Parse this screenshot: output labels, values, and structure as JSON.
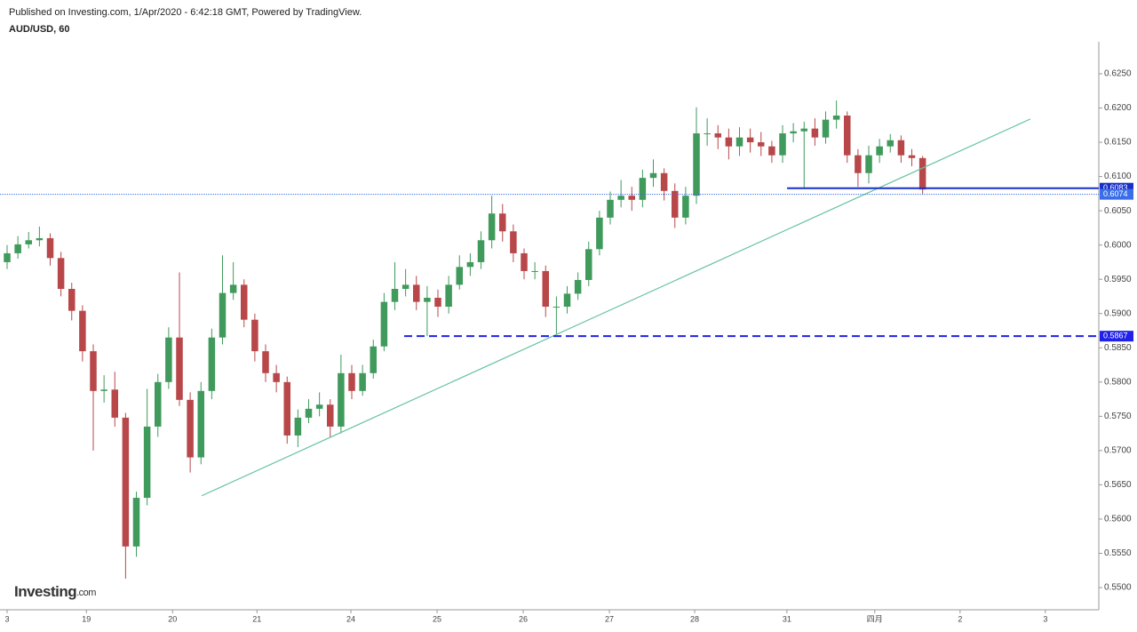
{
  "chart_data": {
    "type": "candlestick",
    "subtitle": "Published on Investing.com, 1/Apr/2020 - 6:42:18 GMT, Powered by TradingView.",
    "title": "AUD/USD, 60",
    "logo": {
      "main": "Investing",
      "suffix": ".com"
    },
    "up_color": "#3f9a5c",
    "down_color": "#b8474a",
    "xlim": [
      -0.0825,
      12.67
    ],
    "ylim": [
      0.54676,
      0.62967
    ],
    "xticks": [
      {
        "value": 0,
        "label": "3"
      },
      {
        "value": 0.92,
        "label": "19"
      },
      {
        "value": 1.92,
        "label": "20"
      },
      {
        "value": 2.9,
        "label": "21"
      },
      {
        "value": 3.99,
        "label": "24"
      },
      {
        "value": 4.99,
        "label": "25"
      },
      {
        "value": 5.99,
        "label": "26"
      },
      {
        "value": 6.99,
        "label": "27"
      },
      {
        "value": 7.98,
        "label": "28"
      },
      {
        "value": 9.05,
        "label": "31"
      },
      {
        "value": 10.07,
        "label": "四月"
      },
      {
        "value": 11.06,
        "label": "2"
      },
      {
        "value": 12.05,
        "label": "3"
      }
    ],
    "yticks": [
      {
        "value": 0.55,
        "label": "0.5500"
      },
      {
        "value": 0.555,
        "label": "0.5550"
      },
      {
        "value": 0.56,
        "label": "0.5600"
      },
      {
        "value": 0.565,
        "label": "0.5650"
      },
      {
        "value": 0.57,
        "label": "0.5700"
      },
      {
        "value": 0.575,
        "label": "0.5750"
      },
      {
        "value": 0.58,
        "label": "0.5800"
      },
      {
        "value": 0.585,
        "label": "0.5850"
      },
      {
        "value": 0.59,
        "label": "0.5900"
      },
      {
        "value": 0.595,
        "label": "0.5950"
      },
      {
        "value": 0.6,
        "label": "0.6000"
      },
      {
        "value": 0.605,
        "label": "0.6050"
      },
      {
        "value": 0.61,
        "label": "0.6100"
      },
      {
        "value": 0.615,
        "label": "0.6150"
      },
      {
        "value": 0.62,
        "label": "0.6200"
      },
      {
        "value": 0.625,
        "label": "0.6250"
      }
    ],
    "x": [
      0,
      0.125,
      0.25,
      0.375,
      0.5,
      0.625,
      0.75,
      0.875,
      1,
      1.125,
      1.25,
      1.375,
      1.5,
      1.625,
      1.75,
      1.875,
      2,
      2.125,
      2.25,
      2.375,
      2.5,
      2.625,
      2.75,
      2.875,
      3,
      3.125,
      3.25,
      3.375,
      3.5,
      3.625,
      3.75,
      3.875,
      4,
      4.125,
      4.25,
      4.375,
      4.5,
      4.625,
      4.75,
      4.875,
      5,
      5.125,
      5.25,
      5.375,
      5.5,
      5.625,
      5.75,
      5.875,
      6,
      6.125,
      6.25,
      6.375,
      6.5,
      6.625,
      6.75,
      6.875,
      7,
      7.125,
      7.25,
      7.375,
      7.5,
      7.625,
      7.75,
      7.875,
      8,
      8.125,
      8.25,
      8.375,
      8.5,
      8.625,
      8.75,
      8.875,
      9,
      9.125,
      9.25,
      9.375,
      9.5,
      9.625,
      9.75,
      9.875,
      10,
      10.125,
      10.25,
      10.375,
      10.5,
      10.625
    ],
    "open": [
      0.5975,
      0.5988,
      0.6001,
      0.6007,
      0.601,
      0.5981,
      0.5936,
      0.5904,
      0.5845,
      0.5787,
      0.5789,
      0.5748,
      0.556,
      0.5631,
      0.5735,
      0.58,
      0.5865,
      0.5774,
      0.569,
      0.5787,
      0.5865,
      0.593,
      0.5942,
      0.5891,
      0.5845,
      0.5813,
      0.58,
      0.5722,
      0.5748,
      0.5761,
      0.5767,
      0.5735,
      0.5813,
      0.5787,
      0.5813,
      0.5852,
      0.5917,
      0.5936,
      0.5942,
      0.5917,
      0.5923,
      0.591,
      0.5942,
      0.5968,
      0.5975,
      0.6007,
      0.6046,
      0.602,
      0.5988,
      0.5962,
      0.5962,
      0.591,
      0.591,
      0.5929,
      0.5949,
      0.5994,
      0.604,
      0.6066,
      0.6072,
      0.6066,
      0.6098,
      0.6105,
      0.6079,
      0.604,
      0.6072,
      0.6163,
      0.6163,
      0.6157,
      0.6144,
      0.6157,
      0.615,
      0.6144,
      0.6131,
      0.6163,
      0.6166,
      0.617,
      0.6157,
      0.6183,
      0.6189,
      0.6131,
      0.6105,
      0.6131,
      0.6144,
      0.6153,
      0.6131,
      0.6127
    ],
    "high": [
      0.6,
      0.6013,
      0.6019,
      0.6027,
      0.6017,
      0.599,
      0.5945,
      0.5912,
      0.5855,
      0.581,
      0.5815,
      0.5755,
      0.564,
      0.579,
      0.5812,
      0.588,
      0.596,
      0.5785,
      0.58,
      0.5878,
      0.5985,
      0.5975,
      0.595,
      0.59,
      0.5855,
      0.5825,
      0.5808,
      0.576,
      0.5775,
      0.5785,
      0.5775,
      0.584,
      0.5825,
      0.5825,
      0.5862,
      0.593,
      0.5975,
      0.5965,
      0.5955,
      0.594,
      0.5935,
      0.5955,
      0.5985,
      0.5988,
      0.602,
      0.6072,
      0.606,
      0.603,
      0.5995,
      0.5975,
      0.597,
      0.5925,
      0.594,
      0.596,
      0.6005,
      0.605,
      0.6078,
      0.6095,
      0.6085,
      0.611,
      0.6125,
      0.6112,
      0.609,
      0.6085,
      0.6201,
      0.6185,
      0.6175,
      0.617,
      0.6172,
      0.617,
      0.6165,
      0.6152,
      0.6175,
      0.6178,
      0.618,
      0.6185,
      0.6195,
      0.6211,
      0.6195,
      0.614,
      0.6145,
      0.6155,
      0.6162,
      0.616,
      0.614,
      0.613
    ],
    "low": [
      0.5965,
      0.598,
      0.5995,
      0.5998,
      0.597,
      0.5925,
      0.589,
      0.583,
      0.57,
      0.577,
      0.5735,
      0.5513,
      0.5545,
      0.562,
      0.572,
      0.579,
      0.5765,
      0.5668,
      0.568,
      0.5775,
      0.5855,
      0.592,
      0.588,
      0.583,
      0.58,
      0.5785,
      0.571,
      0.5705,
      0.574,
      0.575,
      0.572,
      0.5725,
      0.5775,
      0.578,
      0.5805,
      0.5845,
      0.5905,
      0.5925,
      0.5905,
      0.5867,
      0.5895,
      0.59,
      0.5935,
      0.5955,
      0.5965,
      0.5995,
      0.6005,
      0.5975,
      0.595,
      0.595,
      0.5895,
      0.587,
      0.59,
      0.592,
      0.594,
      0.5985,
      0.603,
      0.6055,
      0.605,
      0.6055,
      0.6085,
      0.6065,
      0.6025,
      0.603,
      0.606,
      0.6145,
      0.614,
      0.6125,
      0.613,
      0.6135,
      0.613,
      0.612,
      0.612,
      0.615,
      0.6083,
      0.6145,
      0.6148,
      0.617,
      0.612,
      0.6085,
      0.609,
      0.612,
      0.6135,
      0.612,
      0.6115,
      0.6074
    ],
    "close": [
      0.5988,
      0.6001,
      0.6007,
      0.601,
      0.5981,
      0.5936,
      0.5904,
      0.5845,
      0.5787,
      0.5789,
      0.5748,
      0.556,
      0.5631,
      0.5735,
      0.58,
      0.5865,
      0.5774,
      0.569,
      0.5787,
      0.5865,
      0.593,
      0.5942,
      0.5891,
      0.5845,
      0.5813,
      0.58,
      0.5722,
      0.5748,
      0.5761,
      0.5767,
      0.5735,
      0.5813,
      0.5787,
      0.5813,
      0.5852,
      0.5917,
      0.5936,
      0.5942,
      0.5917,
      0.5923,
      0.591,
      0.5942,
      0.5968,
      0.5975,
      0.6007,
      0.6046,
      0.602,
      0.5988,
      0.5962,
      0.5962,
      0.591,
      0.591,
      0.5929,
      0.5949,
      0.5994,
      0.604,
      0.6066,
      0.6072,
      0.6066,
      0.6098,
      0.6105,
      0.6079,
      0.604,
      0.6072,
      0.6163,
      0.6163,
      0.6157,
      0.6144,
      0.6157,
      0.615,
      0.6144,
      0.6131,
      0.6163,
      0.6166,
      0.617,
      0.6157,
      0.6183,
      0.6189,
      0.6131,
      0.6105,
      0.6131,
      0.6144,
      0.6153,
      0.6131,
      0.6127,
      0.6081
    ],
    "trendline": {
      "x": [
        2.258,
        11.876
      ],
      "y": [
        0.5634,
        0.6184
      ],
      "color": "#66c2a0"
    },
    "levels": [
      {
        "value": 0.5867,
        "x_start": 4.608,
        "style": "dashed",
        "color": "#2020e8"
      },
      {
        "value": 0.6083,
        "x_start": 9.052,
        "style": "solid",
        "color": "#1a2fc8"
      },
      {
        "value": 0.6074,
        "x_start": -0.0825,
        "style": "dotted",
        "color": "#3a6ee8"
      }
    ]
  }
}
